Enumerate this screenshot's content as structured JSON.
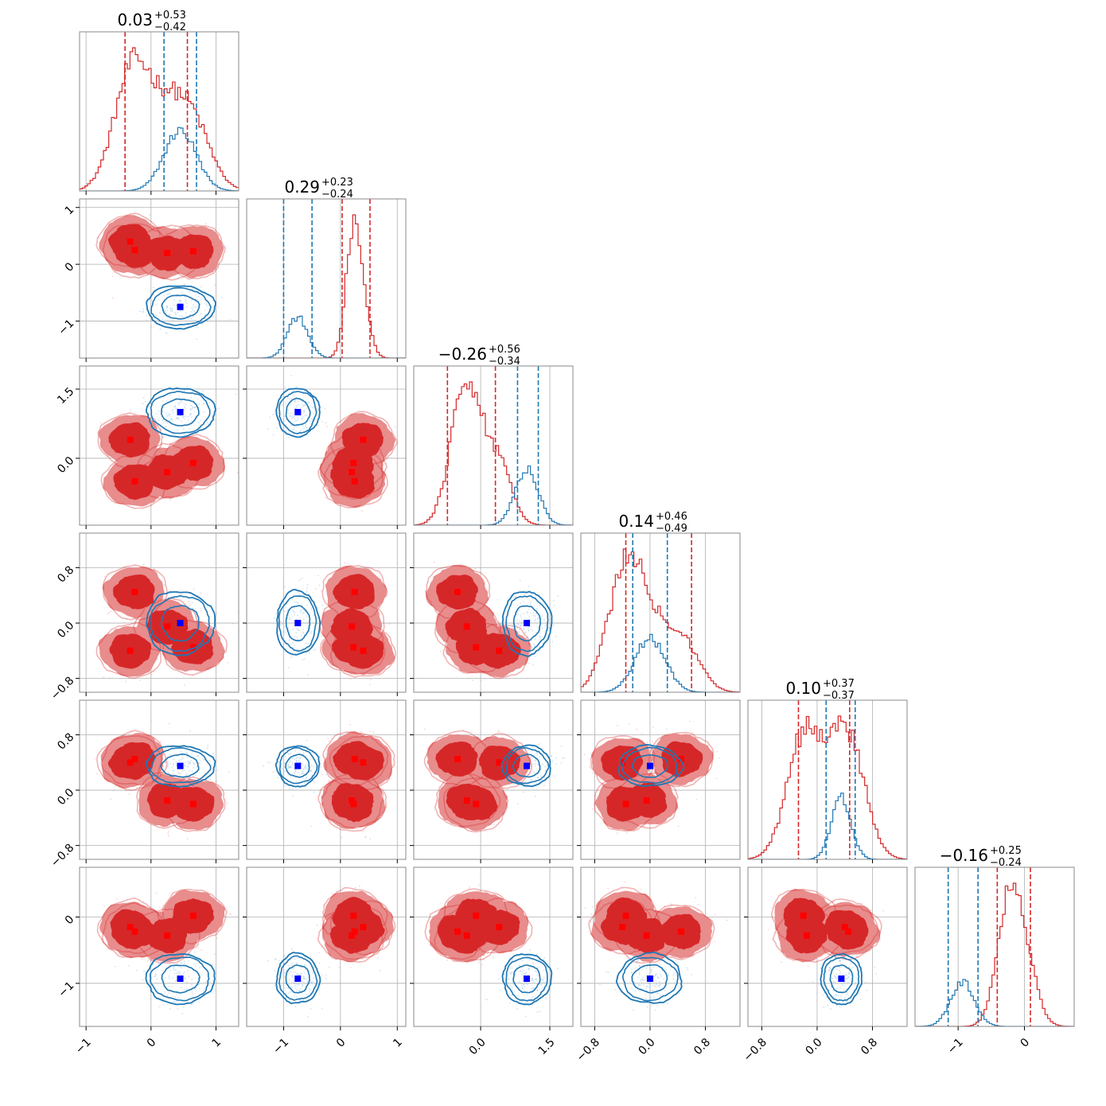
{
  "chart_data": {
    "type": "corner",
    "series": [
      {
        "name": "",
        "color": "#d62728",
        "fill": [
          "#d62728",
          "#e88c8c"
        ],
        "marker": "square"
      },
      {
        "name": "",
        "color": "#1f77b4",
        "marker": "square",
        "marker_color": "#0000ff"
      }
    ],
    "titles": [
      {
        "value": "0.03",
        "plus": "+0.53",
        "minus": "−0.42"
      },
      {
        "value": "0.29",
        "plus": "+0.23",
        "minus": "−0.24"
      },
      {
        "value": "−0.26",
        "plus": "+0.56",
        "minus": "−0.34"
      },
      {
        "value": "0.14",
        "plus": "+0.46",
        "minus": "−0.49"
      },
      {
        "value": "0.10",
        "plus": "+0.37",
        "minus": "−0.37"
      },
      {
        "value": "−0.16",
        "plus": "+0.25",
        "minus": "−0.24"
      }
    ],
    "params": [
      {
        "range": [
          -1.1,
          1.35
        ],
        "ticks": [
          -1,
          0,
          1
        ],
        "tick_labels": [
          "−1",
          "0",
          "1"
        ]
      },
      {
        "range": [
          -1.65,
          1.15
        ],
        "ticks": [
          -1,
          0,
          1
        ],
        "tick_labels": [
          "−1",
          "0",
          "1"
        ]
      },
      {
        "range": [
          -1.45,
          2.0
        ],
        "ticks": [
          0.0,
          1.5
        ],
        "tick_labels": [
          "0.0",
          "1.5"
        ]
      },
      {
        "range": [
          -1.0,
          1.3
        ],
        "ticks": [
          -0.8,
          0.0,
          0.8
        ],
        "tick_labels": [
          "−0.8",
          "0.0",
          "0.8"
        ]
      },
      {
        "range": [
          -1.0,
          1.3
        ],
        "ticks": [
          -0.8,
          0.0,
          0.8
        ],
        "tick_labels": [
          "−0.8",
          "0.0",
          "0.8"
        ]
      },
      {
        "range": [
          -1.65,
          0.75
        ],
        "ticks": [
          -1,
          0
        ],
        "tick_labels": [
          "−1",
          "0"
        ]
      }
    ],
    "quantiles": {
      "red": [
        [
          -0.4,
          0.56
        ],
        [
          0.03,
          0.52
        ],
        [
          -0.72,
          0.32
        ],
        [
          -0.35,
          0.6
        ],
        [
          -0.27,
          0.47
        ],
        [
          -0.41,
          0.09
        ]
      ],
      "blue": [
        [
          0.2,
          0.7
        ],
        [
          -1.0,
          -0.5
        ],
        [
          0.8,
          1.25
        ],
        [
          -0.25,
          0.25
        ],
        [
          0.13,
          0.55
        ],
        [
          -1.15,
          -0.7
        ]
      ]
    },
    "modes": {
      "red": [
        {
          "center": [
            0.0,
            0.3
          ],
          "sd": [
            0.34,
            0.13
          ],
          "weight": 1
        },
        {
          "center": [
            -0.4,
            0.35
          ],
          "sd": [
            0.22,
            0.17
          ],
          "weight": 1
        },
        {
          "center": [
            0.1,
            -0.2
          ],
          "sd": [
            0.3,
            0.22
          ],
          "weight": 1
        },
        {
          "center": [
            0.2,
            -0.15
          ],
          "sd": [
            0.18,
            0.16
          ],
          "weight": 1
        },
        {
          "center": [
            0.3,
            0.2
          ],
          "sd": [
            0.16,
            0.16
          ],
          "weight": 1
        },
        {
          "center": [
            0.1,
            -0.15
          ],
          "sd": [
            0.18,
            0.17
          ],
          "weight": 1
        }
      ],
      "blue": [
        0.45,
        -0.75,
        1.0,
        0.0,
        0.35,
        -0.93
      ],
      "blue_sd": [
        0.25,
        0.18,
        0.25,
        0.22,
        0.14,
        0.18
      ]
    },
    "red_markers": [
      [
        -0.32,
        0.4,
        0.4,
        -0.4,
        0.4,
        -0.15
      ],
      [
        -0.25,
        0.25,
        -0.5,
        0.45,
        0.45,
        -0.22
      ],
      [
        0.25,
        0.2,
        -0.3,
        -0.05,
        -0.15,
        -0.28
      ],
      [
        0.65,
        0.23,
        -0.1,
        -0.35,
        -0.2,
        0.02
      ]
    ],
    "blue_marker": [
      0.45,
      -0.75,
      1.0,
      0.0,
      0.35,
      -0.93
    ]
  }
}
